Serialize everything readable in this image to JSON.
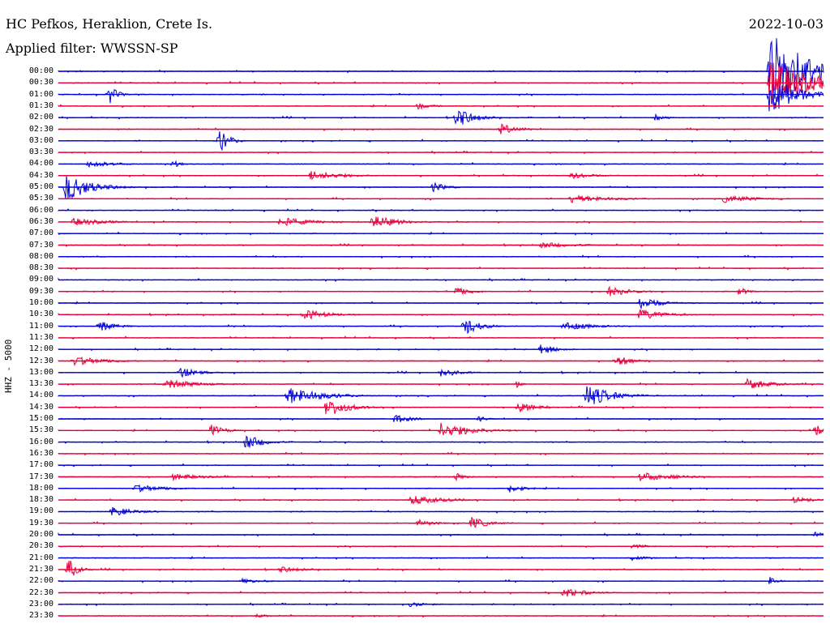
{
  "header": {
    "station": "HC Pefkos, Heraklion, Crete Is.",
    "date": "2022-10-03",
    "filter": "Applied filter: WWSSN-SP"
  },
  "channel_label": "HHZ - 5000",
  "colors": {
    "even_trace": "#0000d8",
    "odd_trace": "#e8003c",
    "background": "#ffffff",
    "text": "#000000"
  },
  "chart_data": {
    "type": "line",
    "title": "HC Pefkos, Heraklion, Crete Is.",
    "subtitle": "Applied filter: WWSSN-SP",
    "ylabel": "HHZ - 5000",
    "row_labels": [
      "00:00",
      "00:30",
      "01:00",
      "01:30",
      "02:00",
      "02:30",
      "03:00",
      "03:30",
      "04:00",
      "04:30",
      "05:00",
      "05:30",
      "06:00",
      "06:30",
      "07:00",
      "07:30",
      "08:00",
      "08:30",
      "09:00",
      "09:30",
      "10:00",
      "10:30",
      "11:00",
      "11:30",
      "12:00",
      "12:30",
      "13:00",
      "13:30",
      "14:00",
      "14:30",
      "15:00",
      "15:30",
      "16:00",
      "16:30",
      "17:00",
      "17:30",
      "18:00",
      "18:30",
      "19:00",
      "19:30",
      "20:00",
      "20:30",
      "21:00",
      "21:30",
      "22:00",
      "22:30",
      "23:00",
      "23:30"
    ],
    "row_duration_minutes": 30,
    "events": [
      {
        "row": 0,
        "t": 0.93,
        "amp": 50,
        "dur": 0.05
      },
      {
        "row": 1,
        "t": 0.93,
        "amp": 30,
        "dur": 0.05
      },
      {
        "row": 2,
        "t": 0.067,
        "amp": 12,
        "dur": 0.01
      },
      {
        "row": 2,
        "t": 0.93,
        "amp": 28,
        "dur": 0.03
      },
      {
        "row": 3,
        "t": 0.47,
        "amp": 4,
        "dur": 0.02
      },
      {
        "row": 4,
        "t": 0.52,
        "amp": 14,
        "dur": 0.02
      },
      {
        "row": 4,
        "t": 0.78,
        "amp": 4,
        "dur": 0.015
      },
      {
        "row": 5,
        "t": 0.578,
        "amp": 7,
        "dur": 0.02
      },
      {
        "row": 6,
        "t": 0.21,
        "amp": 16,
        "dur": 0.012
      },
      {
        "row": 8,
        "t": 0.04,
        "amp": 5,
        "dur": 0.03
      },
      {
        "row": 8,
        "t": 0.15,
        "amp": 5,
        "dur": 0.01
      },
      {
        "row": 9,
        "t": 0.33,
        "amp": 6,
        "dur": 0.04
      },
      {
        "row": 9,
        "t": 0.67,
        "amp": 4,
        "dur": 0.03
      },
      {
        "row": 10,
        "t": 0.01,
        "amp": 18,
        "dur": 0.03
      },
      {
        "row": 10,
        "t": 0.49,
        "amp": 7,
        "dur": 0.015
      },
      {
        "row": 11,
        "t": 0.67,
        "amp": 5,
        "dur": 0.05
      },
      {
        "row": 11,
        "t": 0.87,
        "amp": 5,
        "dur": 0.04
      },
      {
        "row": 13,
        "t": 0.02,
        "amp": 5,
        "dur": 0.04
      },
      {
        "row": 13,
        "t": 0.29,
        "amp": 6,
        "dur": 0.04
      },
      {
        "row": 13,
        "t": 0.41,
        "amp": 9,
        "dur": 0.03
      },
      {
        "row": 15,
        "t": 0.63,
        "amp": 4,
        "dur": 0.04
      },
      {
        "row": 19,
        "t": 0.52,
        "amp": 6,
        "dur": 0.02
      },
      {
        "row": 19,
        "t": 0.72,
        "amp": 6,
        "dur": 0.03
      },
      {
        "row": 19,
        "t": 0.89,
        "amp": 6,
        "dur": 0.01
      },
      {
        "row": 20,
        "t": 0.76,
        "amp": 7,
        "dur": 0.03
      },
      {
        "row": 21,
        "t": 0.32,
        "amp": 7,
        "dur": 0.03
      },
      {
        "row": 21,
        "t": 0.76,
        "amp": 7,
        "dur": 0.03
      },
      {
        "row": 22,
        "t": 0.053,
        "amp": 7,
        "dur": 0.02
      },
      {
        "row": 22,
        "t": 0.53,
        "amp": 11,
        "dur": 0.02
      },
      {
        "row": 22,
        "t": 0.66,
        "amp": 5,
        "dur": 0.04
      },
      {
        "row": 24,
        "t": 0.63,
        "amp": 7,
        "dur": 0.02
      },
      {
        "row": 25,
        "t": 0.02,
        "amp": 6,
        "dur": 0.04
      },
      {
        "row": 25,
        "t": 0.73,
        "amp": 7,
        "dur": 0.02
      },
      {
        "row": 26,
        "t": 0.16,
        "amp": 7,
        "dur": 0.02
      },
      {
        "row": 26,
        "t": 0.5,
        "amp": 7,
        "dur": 0.02
      },
      {
        "row": 27,
        "t": 0.14,
        "amp": 6,
        "dur": 0.04
      },
      {
        "row": 27,
        "t": 0.6,
        "amp": 5,
        "dur": 0.005
      },
      {
        "row": 27,
        "t": 0.9,
        "amp": 7,
        "dur": 0.03
      },
      {
        "row": 28,
        "t": 0.3,
        "amp": 12,
        "dur": 0.04
      },
      {
        "row": 28,
        "t": 0.69,
        "amp": 15,
        "dur": 0.03
      },
      {
        "row": 29,
        "t": 0.35,
        "amp": 13,
        "dur": 0.025
      },
      {
        "row": 29,
        "t": 0.6,
        "amp": 8,
        "dur": 0.02
      },
      {
        "row": 30,
        "t": 0.44,
        "amp": 6,
        "dur": 0.02
      },
      {
        "row": 30,
        "t": 0.55,
        "amp": 4,
        "dur": 0.01
      },
      {
        "row": 31,
        "t": 0.2,
        "amp": 8,
        "dur": 0.015
      },
      {
        "row": 31,
        "t": 0.5,
        "amp": 10,
        "dur": 0.04
      },
      {
        "row": 31,
        "t": 0.99,
        "amp": 8,
        "dur": 0.01
      },
      {
        "row": 32,
        "t": 0.245,
        "amp": 10,
        "dur": 0.02
      },
      {
        "row": 35,
        "t": 0.15,
        "amp": 4,
        "dur": 0.04
      },
      {
        "row": 35,
        "t": 0.52,
        "amp": 6,
        "dur": 0.01
      },
      {
        "row": 35,
        "t": 0.76,
        "amp": 6,
        "dur": 0.04
      },
      {
        "row": 36,
        "t": 0.1,
        "amp": 5,
        "dur": 0.04
      },
      {
        "row": 36,
        "t": 0.59,
        "amp": 5,
        "dur": 0.02
      },
      {
        "row": 37,
        "t": 0.46,
        "amp": 6,
        "dur": 0.04
      },
      {
        "row": 37,
        "t": 0.96,
        "amp": 4,
        "dur": 0.03
      },
      {
        "row": 38,
        "t": 0.07,
        "amp": 6,
        "dur": 0.03
      },
      {
        "row": 39,
        "t": 0.47,
        "amp": 5,
        "dur": 0.02
      },
      {
        "row": 39,
        "t": 0.54,
        "amp": 8,
        "dur": 0.02
      },
      {
        "row": 40,
        "t": 0.99,
        "amp": 4,
        "dur": 0.01
      },
      {
        "row": 41,
        "t": 0.75,
        "amp": 3,
        "dur": 0.02
      },
      {
        "row": 42,
        "t": 0.75,
        "amp": 3,
        "dur": 0.02
      },
      {
        "row": 43,
        "t": 0.013,
        "amp": 16,
        "dur": 0.01
      },
      {
        "row": 43,
        "t": 0.29,
        "amp": 4,
        "dur": 0.03
      },
      {
        "row": 44,
        "t": 0.24,
        "amp": 3,
        "dur": 0.03
      },
      {
        "row": 44,
        "t": 0.93,
        "amp": 6,
        "dur": 0.01
      },
      {
        "row": 45,
        "t": 0.66,
        "amp": 6,
        "dur": 0.03
      },
      {
        "row": 46,
        "t": 0.46,
        "amp": 3,
        "dur": 0.03
      },
      {
        "row": 47,
        "t": 0.26,
        "amp": 4,
        "dur": 0.01
      }
    ]
  }
}
